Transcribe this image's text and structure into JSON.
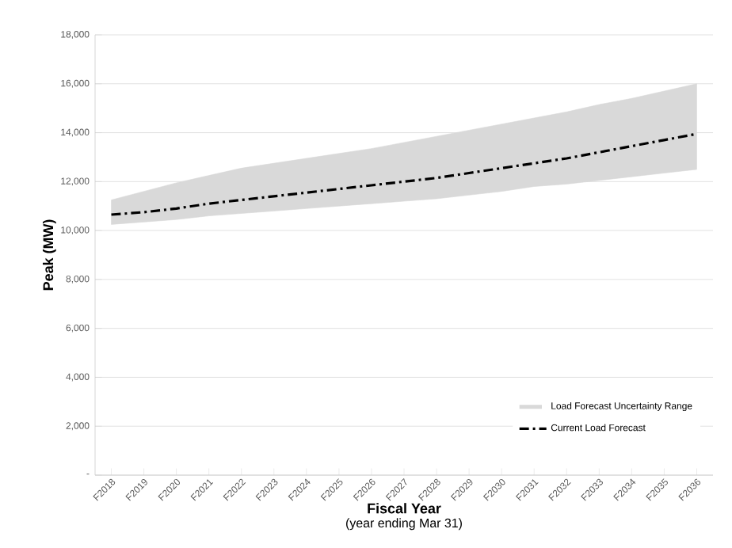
{
  "chart_data": {
    "type": "line",
    "xlabel": "Fiscal Year",
    "annotations": [
      "(year ending Mar 31)",
      "Load Forecast Uncertainty Range"
    ],
    "ylabel": "Peak (MW)",
    "categories": [
      "F2018",
      "F2019",
      "F2020",
      "F2021",
      "F2022",
      "F2023",
      "F2024",
      "F2025",
      "F2026",
      "F2027",
      "F2028",
      "F2029",
      "F2030",
      "F2031",
      "F2032",
      "F2033",
      "F2034",
      "F2035",
      "F2036"
    ],
    "series": [
      {
        "name": "Current Load Forecast",
        "color": "#000000",
        "line_style": "dashed",
        "lower": [
          10250,
          10350,
          10450,
          10600,
          10700,
          10800,
          10900,
          11000,
          11100,
          11200,
          11300,
          11450,
          11600,
          11800,
          11900,
          12050,
          12200,
          12350,
          12500
        ],
        "upper": [
          11250,
          11600,
          11950,
          12250,
          12550,
          12750,
          12950,
          13150,
          13350,
          13600,
          13850,
          14100,
          14350,
          14600,
          14850,
          15150,
          15400,
          15700,
          16000
        ],
        "values": [
          10650,
          10750,
          10900,
          11100,
          11250,
          11400,
          11550,
          11700,
          11850,
          12000,
          12150,
          12350,
          12550,
          12750,
          12950,
          13200,
          13450,
          13700,
          13950
        ]
      }
    ],
    "ylim": [
      0,
      18000
    ],
    "yticks": [
      {
        "value": 0,
        "label": "-"
      },
      {
        "value": 2000,
        "label": "2,000"
      },
      {
        "value": 4000,
        "label": "4,000"
      },
      {
        "value": 6000,
        "label": "6,000"
      },
      {
        "value": 8000,
        "label": "8,000"
      },
      {
        "value": 10000,
        "label": "10,000"
      },
      {
        "value": 12000,
        "label": "12,000"
      },
      {
        "value": 14000,
        "label": "14,000"
      },
      {
        "value": 16000,
        "label": "16,000"
      },
      {
        "value": 18000,
        "label": "18,000"
      }
    ],
    "grid": "y",
    "legend": "bottom right"
  }
}
